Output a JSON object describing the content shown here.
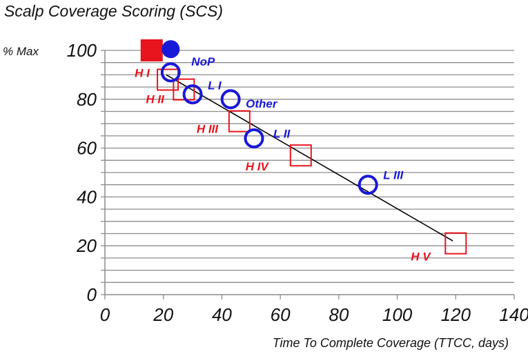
{
  "chart_data": {
    "type": "scatter",
    "title": "Scalp Coverage Scoring (SCS)",
    "ylabel": "% Max",
    "xlabel": "Time To Complete Coverage (TTCC, days)",
    "xlim": [
      0,
      140
    ],
    "ylim": [
      0,
      100
    ],
    "x_ticks": [
      0,
      20,
      40,
      60,
      80,
      100,
      120,
      140
    ],
    "y_ticks": [
      0,
      20,
      40,
      60,
      80,
      100
    ],
    "grid": true,
    "colors": {
      "H": "#e8141e",
      "L": "#1818d8",
      "trend": "#000000",
      "grid": "#8c8c8c"
    },
    "series": [
      {
        "group": "H",
        "marker": "square",
        "points": [
          {
            "x": 16,
            "y": 100,
            "label": "",
            "filled": true
          },
          {
            "x": 21.5,
            "y": 88,
            "label": "H I"
          },
          {
            "x": 27,
            "y": 84,
            "label": "H II"
          },
          {
            "x": 46,
            "y": 71,
            "label": "H III"
          },
          {
            "x": 67,
            "y": 57,
            "label": "H IV"
          },
          {
            "x": 120,
            "y": 21,
            "label": "H V"
          }
        ]
      },
      {
        "group": "L",
        "marker": "circle",
        "points": [
          {
            "x": 22.5,
            "y": 100.5,
            "label": "",
            "filled": true
          },
          {
            "x": 22.5,
            "y": 91,
            "label": "NoP"
          },
          {
            "x": 30,
            "y": 82,
            "label": "L I"
          },
          {
            "x": 43,
            "y": 80,
            "label": "Other"
          },
          {
            "x": 51,
            "y": 64,
            "label": "L II"
          },
          {
            "x": 90,
            "y": 45,
            "label": "L III"
          }
        ]
      }
    ],
    "trendline": [
      {
        "x": 21,
        "y": 90
      },
      {
        "x": 119,
        "y": 22
      }
    ]
  }
}
